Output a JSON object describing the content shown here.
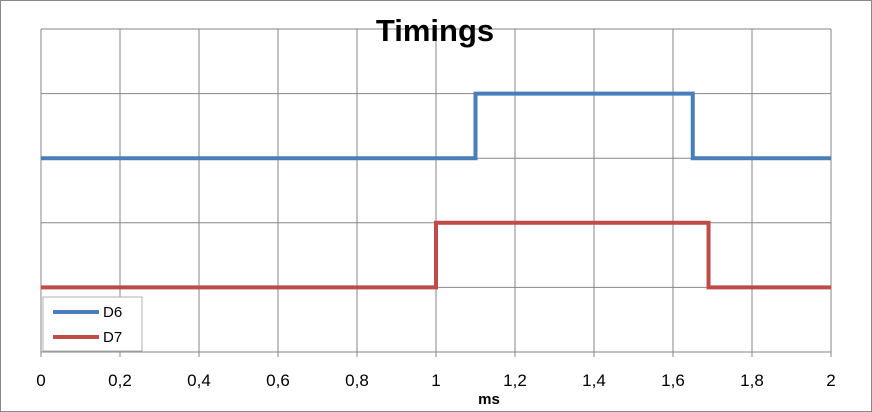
{
  "chart_data": {
    "type": "line",
    "title": "Timings",
    "xlabel": "ms",
    "ylabel": "",
    "xlim": [
      0,
      2
    ],
    "ylim": [
      0,
      5
    ],
    "x_ticks": [
      0,
      0.2,
      0.4,
      0.6,
      0.8,
      1,
      1.2,
      1.4,
      1.6,
      1.8,
      2
    ],
    "x_tick_labels": [
      "0",
      "0,2",
      "0,4",
      "0,6",
      "0,8",
      "1",
      "1,2",
      "1,4",
      "1,6",
      "1,8",
      "2"
    ],
    "y_gridlines": [
      0,
      1,
      2,
      3,
      4,
      5
    ],
    "y_tick_labels_visible": false,
    "grid": true,
    "legend_placement": "bottom-left",
    "series": [
      {
        "name": "D6",
        "color": "#4a7ebb",
        "x": [
          0,
          1.1,
          1.1,
          1.65,
          1.65,
          2
        ],
        "y": [
          3,
          3,
          4,
          4,
          3,
          3
        ]
      },
      {
        "name": "D7",
        "color": "#be4b48",
        "x": [
          0,
          1.0,
          1.0,
          1.69,
          1.69,
          2
        ],
        "y": [
          1,
          1,
          2,
          2,
          1,
          1
        ]
      }
    ]
  }
}
